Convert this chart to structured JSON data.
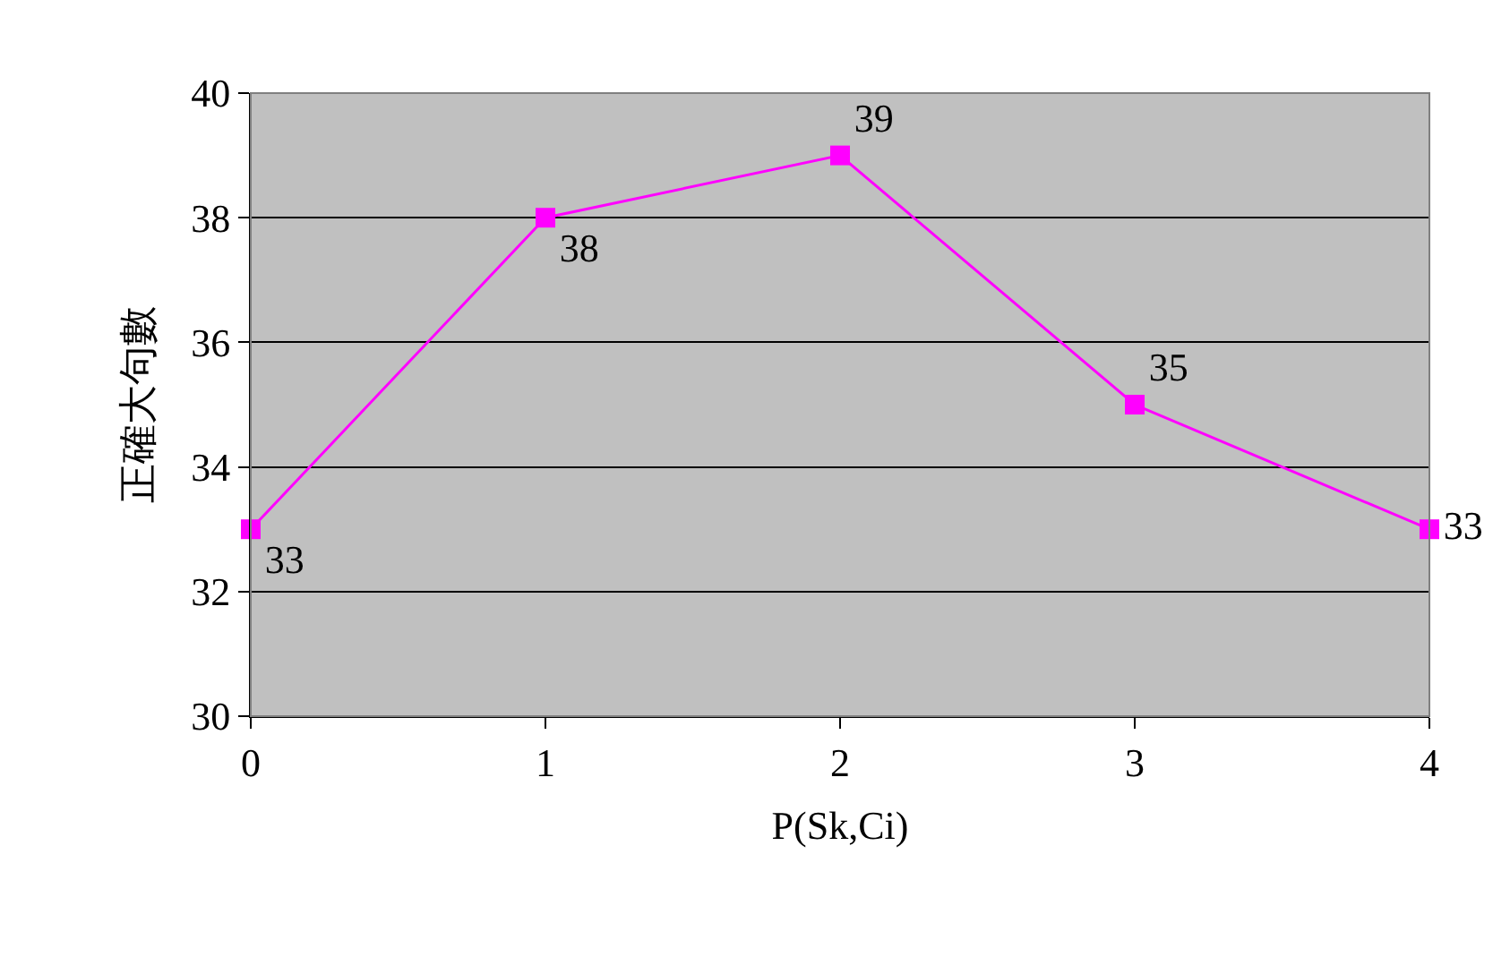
{
  "chart_data": {
    "type": "line",
    "xlabel": "P(Sk,Ci)",
    "ylabel": "正確大句數",
    "x": [
      0,
      1,
      2,
      3,
      4
    ],
    "series": [
      {
        "color": "#ff00ff",
        "values": [
          33,
          38,
          39,
          35,
          33
        ]
      }
    ],
    "xlim": [
      0,
      4
    ],
    "xticks": [
      0,
      1,
      2,
      3,
      4
    ],
    "ylim": [
      30,
      40
    ],
    "yticks": [
      30,
      32,
      34,
      36,
      38,
      40
    ],
    "grid": "y",
    "marker": "square",
    "line_style": "solid",
    "data_labels": true
  }
}
